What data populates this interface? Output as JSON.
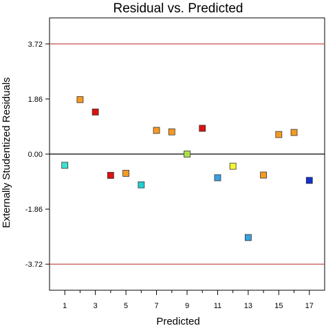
{
  "chart_data": {
    "type": "scatter",
    "title": "Residual vs. Predicted",
    "xlabel": "Predicted",
    "ylabel": "Externally Studentized Residuals",
    "xlim": [
      0,
      18
    ],
    "ylim": [
      -4.6,
      4.6
    ],
    "x_ticks": [
      1,
      3,
      5,
      7,
      9,
      11,
      13,
      15,
      17
    ],
    "x_tick_labels": [
      "1",
      "3",
      "5",
      "7",
      "9",
      "11",
      "13",
      "15",
      "17"
    ],
    "x_minor_ticks": [
      2,
      4,
      6,
      8,
      10,
      12,
      14,
      16
    ],
    "y_ticks": [
      3.72,
      1.86,
      0.0,
      -1.86,
      -3.72
    ],
    "y_tick_labels": [
      "3.72",
      "1.86",
      "0.00",
      "-1.86",
      "-3.72"
    ],
    "reference_lines": [
      {
        "y": 3.72,
        "color": "#c0504d"
      },
      {
        "y": 0.0,
        "color": "#000000"
      },
      {
        "y": -3.72,
        "color": "#c0504d"
      }
    ],
    "grid": false,
    "points": [
      {
        "x": 1,
        "y": -0.38,
        "color": "#3fe0d0"
      },
      {
        "x": 2,
        "y": 1.84,
        "color": "#f59a23"
      },
      {
        "x": 3,
        "y": 1.42,
        "color": "#dd1111"
      },
      {
        "x": 4,
        "y": -0.72,
        "color": "#dd1111"
      },
      {
        "x": 5,
        "y": -0.65,
        "color": "#f59a23"
      },
      {
        "x": 6,
        "y": -1.04,
        "color": "#22d0d0"
      },
      {
        "x": 7,
        "y": 0.8,
        "color": "#f59a23"
      },
      {
        "x": 8,
        "y": 0.75,
        "color": "#f59a23"
      },
      {
        "x": 9,
        "y": 0.0,
        "color": "#a9e04a"
      },
      {
        "x": 10,
        "y": 0.87,
        "color": "#dd1111"
      },
      {
        "x": 11,
        "y": -0.8,
        "color": "#3aa0e0"
      },
      {
        "x": 12,
        "y": -0.41,
        "color": "#f5f53a"
      },
      {
        "x": 13,
        "y": -2.82,
        "color": "#3aa0e0"
      },
      {
        "x": 14,
        "y": -0.71,
        "color": "#f59a23"
      },
      {
        "x": 15,
        "y": 0.66,
        "color": "#f59a23"
      },
      {
        "x": 16,
        "y": 0.73,
        "color": "#f59a23"
      },
      {
        "x": 17,
        "y": -0.89,
        "color": "#1130cc"
      }
    ]
  }
}
